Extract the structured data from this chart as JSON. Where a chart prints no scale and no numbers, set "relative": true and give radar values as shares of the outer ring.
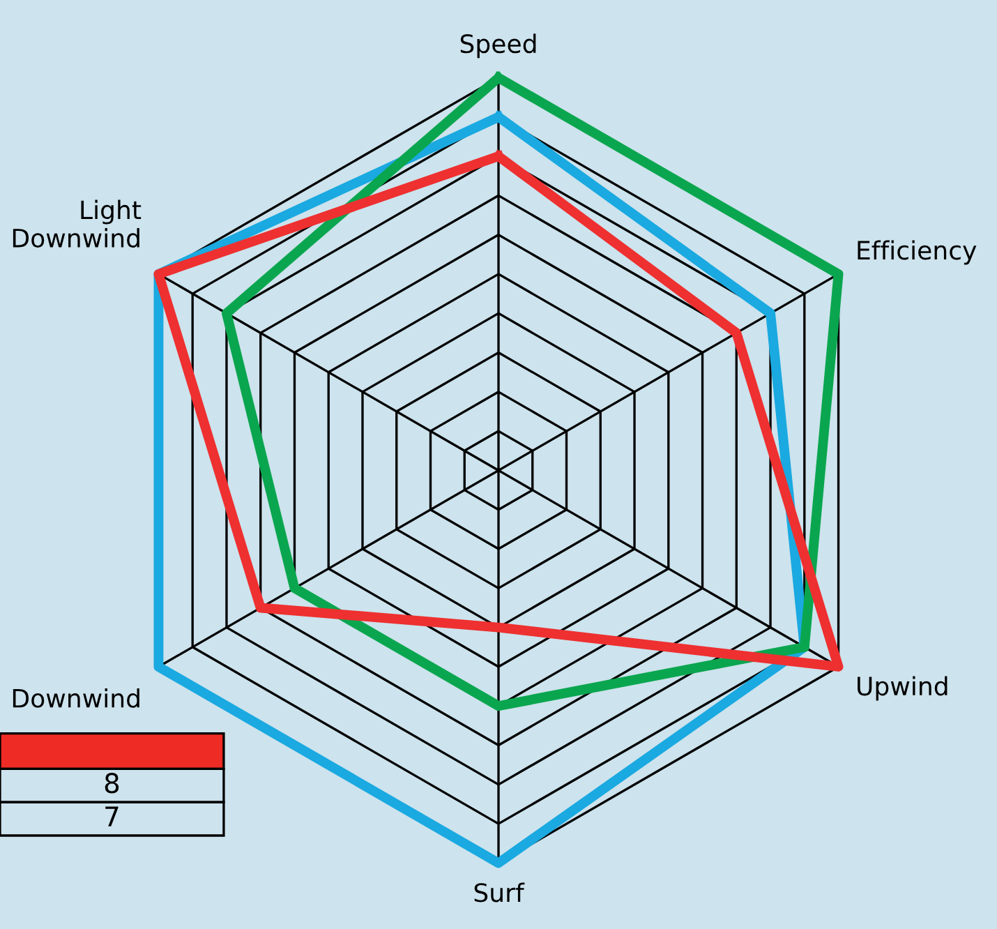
{
  "chart_data": {
    "type": "radar",
    "relative": true,
    "grid": true,
    "legend": false,
    "categories": [
      "Speed",
      "Efficiency",
      "Upwind",
      "Surf",
      "Downwind",
      "Light\nDownwind"
    ],
    "series": [
      {
        "color": "#1aa9e0",
        "values": [
          0.9,
          0.8,
          0.9,
          1.0,
          1.0,
          1.0
        ]
      },
      {
        "color": "#0aa64f",
        "values": [
          1.0,
          1.0,
          0.9,
          0.6,
          0.6,
          0.8
        ]
      },
      {
        "color": "#ee3030",
        "values": [
          0.8,
          0.7,
          1.0,
          0.4,
          0.7,
          1.0
        ]
      }
    ],
    "annotations": [
      "8",
      "7"
    ]
  }
}
